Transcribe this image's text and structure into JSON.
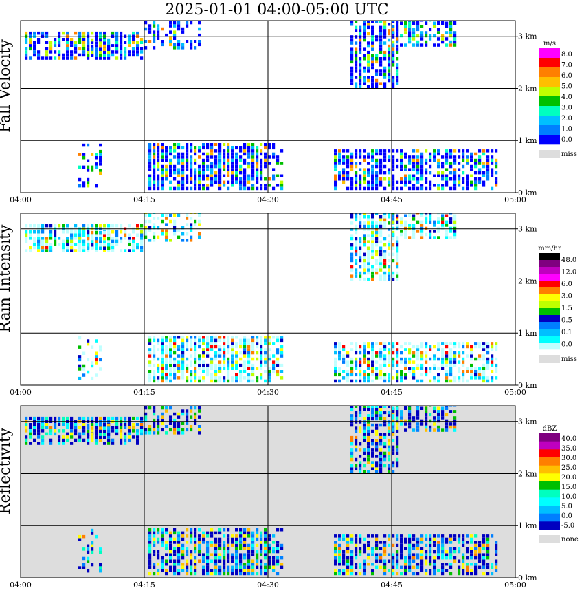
{
  "title": "2025-01-01   04:00-05:00 UTC",
  "colors": {
    "background": "#ffffff",
    "grid": "#000000",
    "missing": "#dddddd"
  },
  "chart_data": {
    "type": "heatmap",
    "title": "2025-01-01   04:00-05:00 UTC",
    "x_ticks": [
      "04:00",
      "04:15",
      "04:30",
      "04:45",
      "05:00"
    ],
    "x_range_minutes": [
      0,
      60
    ],
    "y_ticks": [
      "0 km",
      "1 km",
      "2 km",
      "3 km"
    ],
    "y_range_km": [
      0,
      3.3
    ],
    "grid": true,
    "panels": [
      {
        "name": "Fall Velocity",
        "ylabel": "Fall Velocity",
        "unit": "m/s",
        "background": "#ffffff",
        "legend_labels": [
          "8.0",
          "7.0",
          "6.0",
          "5.0",
          "4.0",
          "3.0",
          "2.0",
          "1.0",
          "0.0"
        ],
        "legend_colors": [
          "#ff00ff",
          "#ff0000",
          "#ff7f00",
          "#ffbf00",
          "#bfff00",
          "#00bf00",
          "#00ffbf",
          "#00bfff",
          "#007fff",
          "#0000ff"
        ],
        "missing_label": "miss"
      },
      {
        "name": "Rain Intensity",
        "ylabel": "Rain Intensity",
        "unit": "mm/hr",
        "background": "#ffffff",
        "legend_labels": [
          "48.0",
          "12.0",
          "6.0",
          "3.0",
          "1.5",
          "0.5",
          "0.1",
          "0.0"
        ],
        "legend_colors": [
          "#000000",
          "#7f007f",
          "#bf00bf",
          "#ff00ff",
          "#ff0000",
          "#ff7f00",
          "#ffff00",
          "#bfff00",
          "#00bf00",
          "#0000c0",
          "#007fff",
          "#00bfff",
          "#00ffff",
          "#bfffff"
        ],
        "missing_label": "miss"
      },
      {
        "name": "Reflectivity",
        "ylabel": "Reflectivity",
        "unit": "dBZ",
        "background": "#dddddd",
        "legend_labels": [
          "40.0",
          "35.0",
          "30.0",
          "25.0",
          "20.0",
          "15.0",
          "10.0",
          "5.0",
          "0.0",
          "-5.0"
        ],
        "legend_colors": [
          "#7f007f",
          "#bf00bf",
          "#ff0000",
          "#ff7f00",
          "#ffbf00",
          "#ffff00",
          "#00bf00",
          "#00ffbf",
          "#00ffff",
          "#00bfff",
          "#007fff",
          "#0000c0"
        ],
        "missing_label": "none"
      }
    ]
  }
}
